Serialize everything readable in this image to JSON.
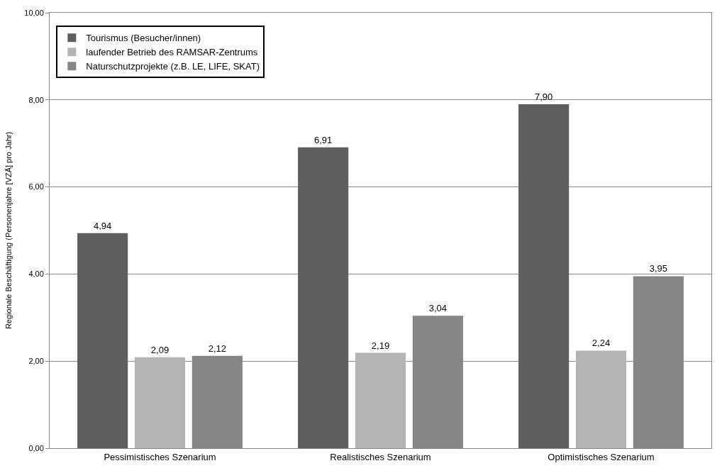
{
  "chart_data": {
    "type": "bar",
    "ylabel": "Regionale Beschäftigung (Personenjahre [VZÄ] pro Jahr)",
    "categories": [
      "Pessimistisches Szenarium",
      "Realistisches Szenarium",
      "Optimistisches Szenarium"
    ],
    "series": [
      {
        "name": "Tourismus (Besucher/innen)",
        "color": "#5f5f5f",
        "values": [
          4.94,
          6.91,
          7.9
        ],
        "value_labels": [
          "4,94",
          "6,91",
          "7,90"
        ]
      },
      {
        "name": "laufender Betrieb des RAMSAR-Zentrums",
        "color": "#b4b4b4",
        "values": [
          2.09,
          2.19,
          2.24
        ],
        "value_labels": [
          "2,09",
          "2,19",
          "2,24"
        ]
      },
      {
        "name": "Naturschutzprojekte (z.B. LE, LIFE, SKAT)",
        "color": "#868686",
        "values": [
          2.12,
          3.04,
          3.95
        ],
        "value_labels": [
          "2,12",
          "3,04",
          "3,95"
        ]
      }
    ],
    "ylim": [
      0,
      10
    ],
    "yticks": [
      {
        "value": 0,
        "label": "0,00"
      },
      {
        "value": 2,
        "label": "2,00"
      },
      {
        "value": 4,
        "label": "4,00"
      },
      {
        "value": 6,
        "label": "6,00"
      },
      {
        "value": 8,
        "label": "8,00"
      },
      {
        "value": 10,
        "label": "10,00"
      }
    ],
    "grid": "y",
    "legend": "top left"
  }
}
